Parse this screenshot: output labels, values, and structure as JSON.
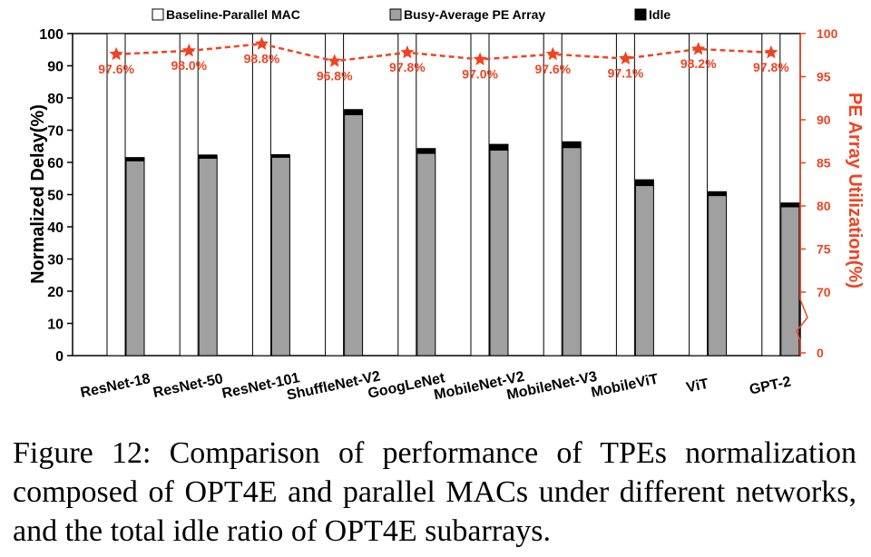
{
  "chart_data": {
    "type": "bar",
    "categories": [
      "ResNet-18",
      "ResNet-50",
      "ResNet-101",
      "ShuffleNet-V2",
      "GoogLeNet",
      "MobileNet-V2",
      "MobileNet-V3",
      "MobileViT",
      "ViT",
      "GPT-2"
    ],
    "series": [
      {
        "name": "Baseline-Parallel MAC",
        "kind": "bar",
        "values": [
          100,
          100,
          100,
          100,
          100,
          100,
          100,
          100,
          100,
          100
        ]
      },
      {
        "name": "Busy-Average PE Array",
        "kind": "bar",
        "values": [
          60.5,
          61.3,
          61.6,
          74.8,
          62.8,
          63.8,
          64.6,
          52.8,
          49.7,
          46.2
        ]
      },
      {
        "name": "Idle",
        "kind": "bar-stacked",
        "values": [
          1.0,
          1.0,
          0.8,
          1.6,
          1.5,
          1.8,
          1.8,
          1.8,
          1.2,
          1.2
        ]
      },
      {
        "name": "PE Array Utilization",
        "kind": "line",
        "axis": "right",
        "values": [
          97.6,
          98.0,
          98.8,
          96.8,
          97.8,
          97.0,
          97.6,
          97.1,
          98.2,
          97.8
        ]
      }
    ],
    "data_labels": [
      "97.6%",
      "98.0%",
      "98.8%",
      "96.8%",
      "97.8%",
      "97.0%",
      "97.6%",
      "97.1%",
      "98.2%",
      "97.8%"
    ],
    "ylabel": "Normalized Delay(%)",
    "ylim": [
      0,
      100
    ],
    "yticks": [
      "0",
      "10",
      "20",
      "30",
      "40",
      "50",
      "60",
      "70",
      "80",
      "90",
      "100"
    ],
    "y2label": "PE Array Utilization(%)",
    "y2ticks": [
      "0",
      "70",
      "75",
      "80",
      "85",
      "90",
      "95",
      "100"
    ],
    "y2_broken_axis": true,
    "legend_position": "top",
    "grid": false,
    "colors": {
      "baseline": "#ffffff",
      "busy": "#a0a0a0",
      "idle": "#000000",
      "util": "#ee4422"
    }
  },
  "caption": "Figure 12: Comparison of performance of TPEs normalization composed of OPT4E and parallel MACs under different networks, and the total idle ratio of OPT4E subarrays."
}
